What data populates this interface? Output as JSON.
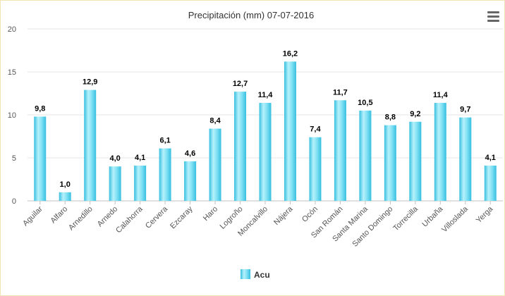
{
  "chart_data": {
    "type": "bar",
    "title": "Precipitación (mm) 07-07-2016",
    "xlabel": "",
    "ylabel": "",
    "ylim": [
      0,
      20
    ],
    "yticks": [
      0,
      5,
      10,
      15,
      20
    ],
    "grid": true,
    "legend": "bottom-center",
    "categories": [
      "Aguilar",
      "Alfaro",
      "Arnedillo",
      "Arnedo",
      "Calahorra",
      "Cervera",
      "Ezcaray",
      "Haro",
      "Logroño",
      "Moncalvillo",
      "Nájera",
      "Ocón",
      "San Román",
      "Santa Marina",
      "Santo Domingo",
      "Torrecilla",
      "Urbaña",
      "Villoslada",
      "Yerga"
    ],
    "series": [
      {
        "name": "Acu",
        "values": [
          9.8,
          1.0,
          12.9,
          4.0,
          4.1,
          6.1,
          4.6,
          8.4,
          12.7,
          11.4,
          16.2,
          7.4,
          11.7,
          10.5,
          8.8,
          9.2,
          11.4,
          9.7,
          4.1
        ],
        "labels": [
          "9,8",
          "1,0",
          "12,9",
          "4,0",
          "4,1",
          "6,1",
          "4,6",
          "8,4",
          "12,7",
          "11,4",
          "16,2",
          "7,4",
          "11,7",
          "10,5",
          "8,8",
          "9,2",
          "11,4",
          "9,7",
          "4,1"
        ]
      }
    ]
  },
  "colors": {
    "bar_light": "#b6f1fb",
    "bar_mid": "#5fd6ef",
    "bar_dark": "#37bfe0",
    "grid": "#e6e6e6",
    "text": "#555555",
    "label": "#000000"
  }
}
